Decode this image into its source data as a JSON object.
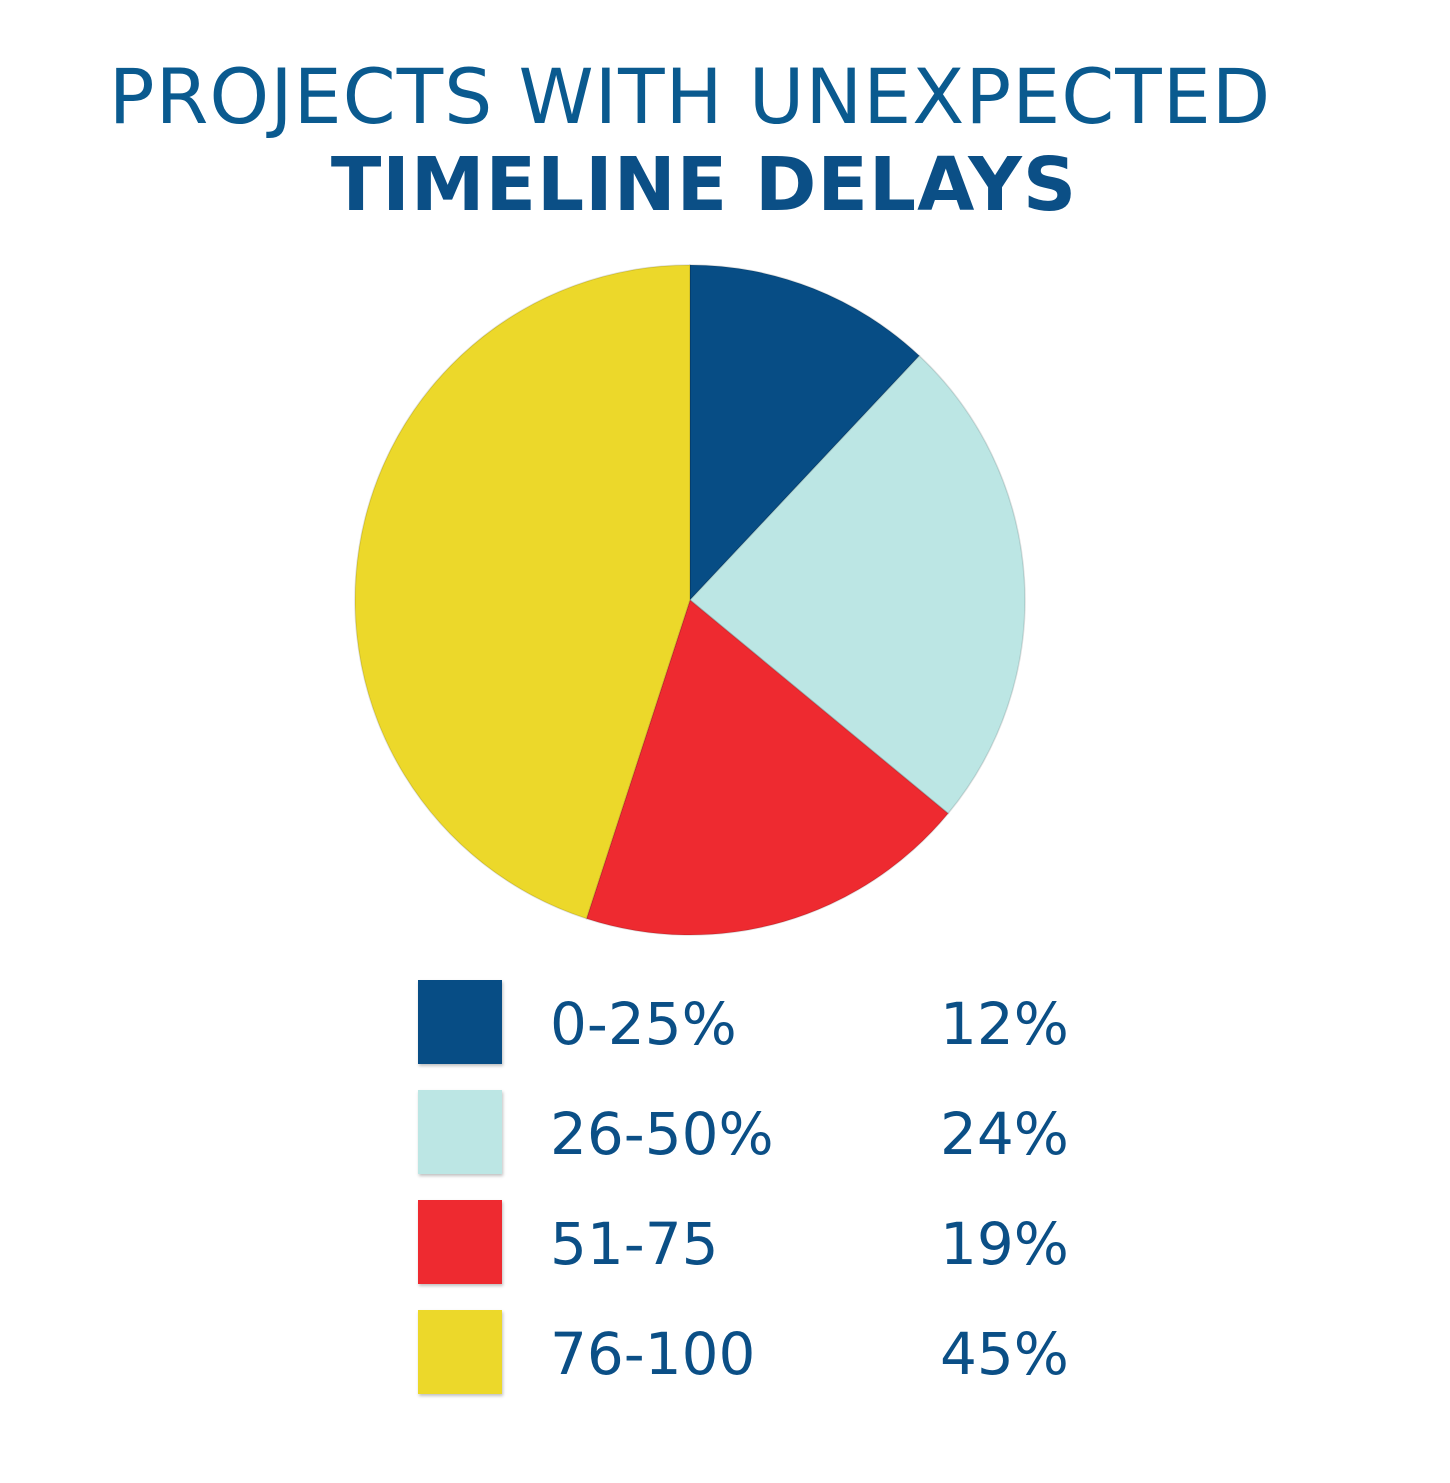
{
  "title": {
    "line1": "PROJECTS WITH UNEXPECTED",
    "line2": "TIMELINE DELAYS"
  },
  "chart_data": {
    "type": "pie",
    "title": "PROJECTS WITH UNEXPECTED TIMELINE DELAYS",
    "categories": [
      "0-25%",
      "26-50%",
      "51-75",
      "76-100"
    ],
    "values": [
      12,
      24,
      19,
      45
    ],
    "labels": [
      "12%",
      "24%",
      "19%",
      "45%"
    ],
    "colors": [
      "#074d85",
      "#bce6e4",
      "#ee2a30",
      "#ecd82a"
    ],
    "start_angle": "top",
    "direction": "clockwise",
    "legend_placement": "bottom"
  }
}
